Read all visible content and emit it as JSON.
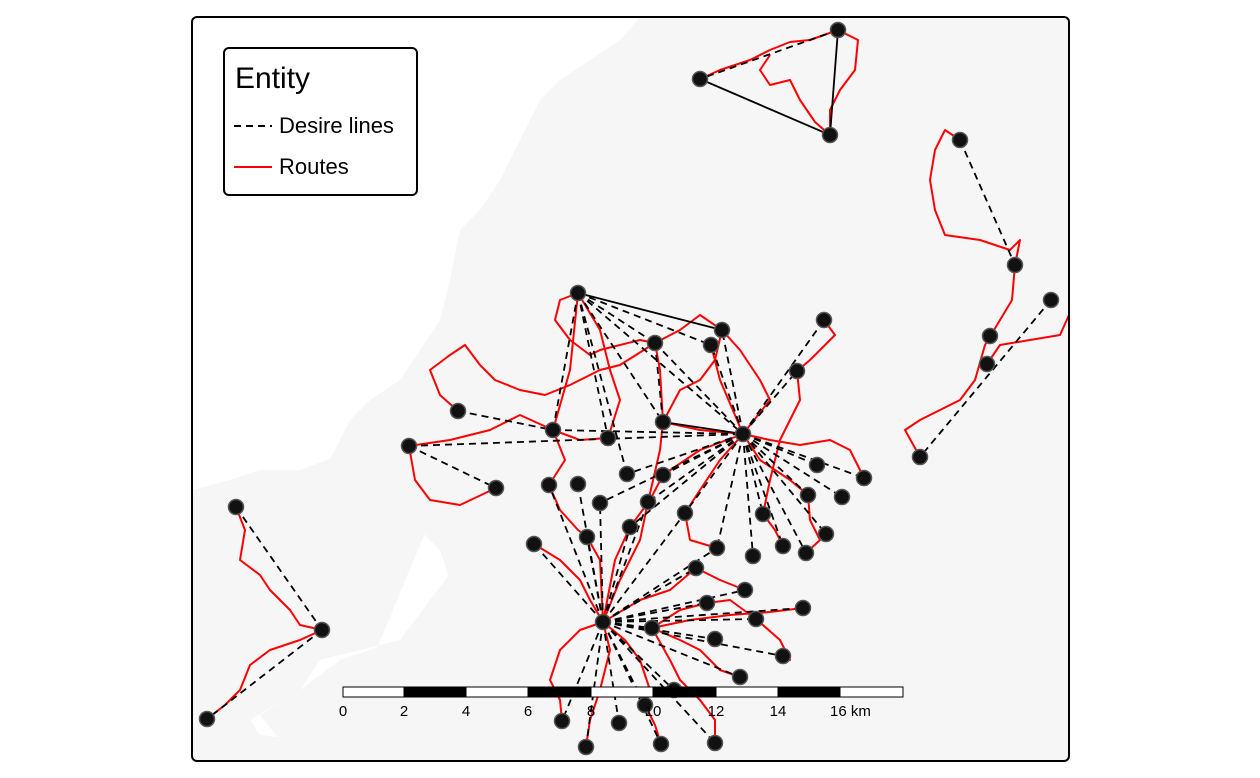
{
  "legend": {
    "title": "Entity",
    "items": [
      {
        "label": "Desire lines",
        "color": "#000000",
        "style": "dashed"
      },
      {
        "label": "Routes",
        "color": "#ff0000",
        "style": "solid"
      }
    ]
  },
  "scale_bar": {
    "labels": [
      "0",
      "2",
      "4",
      "6",
      "8",
      "10",
      "12",
      "14",
      "16 km"
    ]
  },
  "colors": {
    "land": "#f6f6f6",
    "water": "#ffffff",
    "frame": "#000000",
    "route": "#ff0000",
    "desire": "#000000",
    "point": "#111111"
  },
  "icons": {
    "point": "filled-circle-marker"
  }
}
